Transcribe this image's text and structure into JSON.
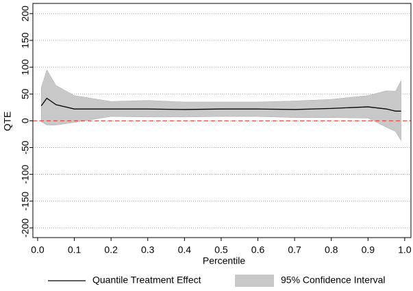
{
  "chart_data": {
    "type": "line",
    "x_label": "Percentile",
    "y_label": "QTE",
    "x": [
      0.01,
      0.025,
      0.05,
      0.1,
      0.2,
      0.3,
      0.4,
      0.5,
      0.6,
      0.7,
      0.8,
      0.9,
      0.95,
      0.975,
      0.99
    ],
    "series": [
      {
        "name": "Quantile Treatment Effect",
        "color": "#000000",
        "values": [
          28,
          42,
          30,
          22,
          22,
          22,
          21,
          22,
          22,
          21,
          23,
          26,
          22,
          18,
          18
        ]
      }
    ],
    "band": {
      "name": "95% Confidence Interval",
      "color": "#c8c8c8",
      "upper": [
        62,
        95,
        66,
        47,
        36,
        38,
        35,
        35,
        35,
        37,
        40,
        47,
        56,
        55,
        75
      ],
      "lower": [
        -2,
        -8,
        -8,
        -3,
        8,
        7,
        7,
        8,
        8,
        6,
        6,
        5,
        -12,
        -20,
        -37
      ]
    },
    "reference_line": {
      "value": 0,
      "color": "#e8302a"
    },
    "xlim": [
      -0.013,
      1.017
    ],
    "xticks": [
      {
        "value": 0,
        "label": "0.0"
      },
      0.1,
      0.2,
      0.3,
      0.4,
      0.5,
      0.6,
      0.7,
      0.8,
      0.9,
      {
        "value": 1,
        "label": "1.0"
      }
    ],
    "ylim": [
      -218,
      219
    ],
    "yticks": [
      200,
      150,
      100,
      50,
      0,
      -50,
      -100,
      -150,
      -200
    ],
    "grid": true
  }
}
